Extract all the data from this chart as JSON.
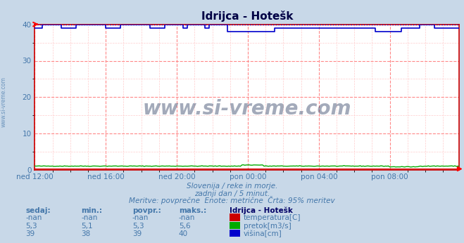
{
  "title": "Idrijca - Hotešk",
  "background_color": "#c8d8e8",
  "plot_background": "#ffffff",
  "grid_color_major": "#ff8888",
  "grid_color_minor": "#ffcccc",
  "xlim": [
    0,
    287
  ],
  "ylim": [
    0,
    40
  ],
  "yticks": [
    0,
    10,
    20,
    30,
    40
  ],
  "xtick_labels": [
    "ned 12:00",
    "ned 16:00",
    "ned 20:00",
    "pon 00:00",
    "pon 04:00",
    "pon 08:00"
  ],
  "xtick_positions": [
    0,
    48,
    96,
    144,
    192,
    240
  ],
  "title_color": "#000044",
  "tick_color": "#4477aa",
  "subtitle_lines": [
    "Slovenija / reke in morje.",
    "zadnji dan / 5 minut.",
    "Meritve: povprečne  Enote: metrične  Črta: 95% meritev"
  ],
  "subtitle_color": "#4477aa",
  "watermark_text": "www.si-vreme.com",
  "watermark_color": "#334466",
  "legend_title": "Idrijca - Hotešk",
  "table_headers": [
    "sedaj:",
    "min.:",
    "povpr.:",
    "maks.:"
  ],
  "table_data": [
    [
      "-nan",
      "-nan",
      "-nan",
      "-nan"
    ],
    [
      "5,3",
      "5,1",
      "5,3",
      "5,6"
    ],
    [
      "39",
      "38",
      "39",
      "40"
    ]
  ],
  "temp_color": "#cc0000",
  "pretok_color": "#00aa00",
  "visina_color": "#0000cc",
  "visina_dotted_color": "#0000cc",
  "n_points": 288,
  "border_color": "#cc0000",
  "left_label": "www.si-vreme.com"
}
